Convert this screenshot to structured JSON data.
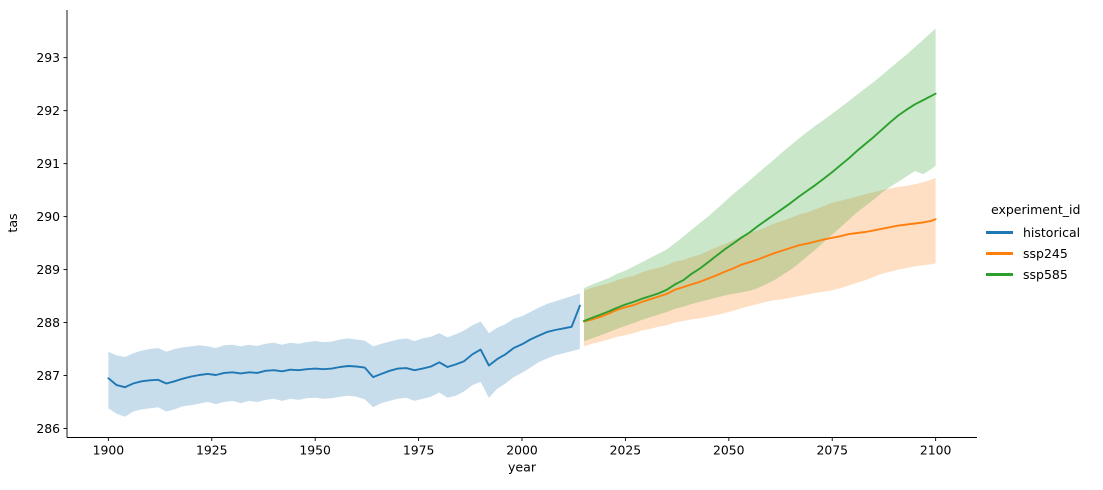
{
  "figure": {
    "background": "#ffffff"
  },
  "legend": {
    "title": "experiment_id",
    "items": [
      {
        "label": "historical",
        "color": "#1f77b4"
      },
      {
        "label": "ssp245",
        "color": "#ff7f0e"
      },
      {
        "label": "ssp585",
        "color": "#2ca02c"
      }
    ]
  },
  "chart_data": {
    "type": "line",
    "title": "",
    "xlabel": "year",
    "ylabel": "tas",
    "xlim": [
      1890,
      2110
    ],
    "ylim": [
      285.83,
      293.9
    ],
    "x_ticks": [
      1900,
      1925,
      1950,
      1975,
      2000,
      2025,
      2050,
      2075,
      2100
    ],
    "y_ticks": [
      286,
      287,
      288,
      289,
      290,
      291,
      292,
      293
    ],
    "grid": false,
    "legend_position": "right-outside",
    "band_alpha": 0.25,
    "series": [
      {
        "name": "historical",
        "color": "#1f77b4",
        "years": [
          1900,
          1902,
          1904,
          1906,
          1908,
          1910,
          1912,
          1914,
          1916,
          1918,
          1920,
          1922,
          1924,
          1926,
          1928,
          1930,
          1932,
          1934,
          1936,
          1938,
          1940,
          1942,
          1944,
          1946,
          1948,
          1950,
          1952,
          1954,
          1956,
          1958,
          1960,
          1962,
          1964,
          1966,
          1968,
          1970,
          1972,
          1974,
          1976,
          1978,
          1980,
          1982,
          1984,
          1986,
          1988,
          1990,
          1992,
          1994,
          1996,
          1998,
          2000,
          2002,
          2004,
          2006,
          2008,
          2010,
          2012,
          2014
        ],
        "mean": [
          286.95,
          286.82,
          286.78,
          286.85,
          286.89,
          286.91,
          286.92,
          286.85,
          286.89,
          286.94,
          286.98,
          287.01,
          287.03,
          287.01,
          287.05,
          287.06,
          287.04,
          287.06,
          287.05,
          287.09,
          287.1,
          287.08,
          287.11,
          287.1,
          287.12,
          287.13,
          287.12,
          287.13,
          287.16,
          287.18,
          287.17,
          287.15,
          286.97,
          287.03,
          287.09,
          287.13,
          287.14,
          287.1,
          287.13,
          287.17,
          287.25,
          287.16,
          287.21,
          287.27,
          287.4,
          287.49,
          287.19,
          287.31,
          287.4,
          287.52,
          287.59,
          287.68,
          287.75,
          287.82,
          287.86,
          287.89,
          287.92,
          288.32
        ],
        "hi": [
          287.45,
          287.38,
          287.35,
          287.42,
          287.47,
          287.5,
          287.52,
          287.45,
          287.5,
          287.53,
          287.55,
          287.57,
          287.55,
          287.52,
          287.57,
          287.58,
          287.55,
          287.58,
          287.56,
          287.6,
          287.62,
          287.58,
          287.62,
          287.6,
          287.63,
          287.65,
          287.63,
          287.64,
          287.68,
          287.7,
          287.68,
          287.66,
          287.55,
          287.6,
          287.64,
          287.68,
          287.7,
          287.65,
          287.7,
          287.73,
          287.8,
          287.72,
          287.78,
          287.85,
          287.95,
          288.02,
          287.8,
          287.9,
          287.97,
          288.07,
          288.12,
          288.2,
          288.28,
          288.35,
          288.4,
          288.45,
          288.5,
          288.55
        ],
        "lo": [
          286.38,
          286.28,
          286.22,
          286.32,
          286.36,
          286.38,
          286.4,
          286.32,
          286.36,
          286.42,
          286.44,
          286.47,
          286.5,
          286.46,
          286.5,
          286.52,
          286.48,
          286.52,
          286.5,
          286.54,
          286.56,
          286.52,
          286.56,
          286.54,
          286.57,
          286.58,
          286.56,
          286.57,
          286.6,
          286.62,
          286.6,
          286.55,
          286.4,
          286.48,
          286.52,
          286.56,
          286.58,
          286.52,
          286.56,
          286.6,
          286.68,
          286.58,
          286.62,
          286.7,
          286.82,
          286.88,
          286.58,
          286.75,
          286.85,
          286.97,
          287.05,
          287.15,
          287.25,
          287.32,
          287.38,
          287.42,
          287.46,
          287.5
        ]
      },
      {
        "name": "ssp245",
        "color": "#ff7f0e",
        "years": [
          2015,
          2017,
          2019,
          2021,
          2023,
          2025,
          2027,
          2029,
          2031,
          2033,
          2035,
          2037,
          2039,
          2041,
          2043,
          2045,
          2047,
          2049,
          2051,
          2053,
          2055,
          2057,
          2059,
          2061,
          2063,
          2065,
          2067,
          2069,
          2071,
          2073,
          2075,
          2077,
          2079,
          2081,
          2083,
          2085,
          2087,
          2089,
          2091,
          2093,
          2095,
          2097,
          2099,
          2100
        ],
        "mean": [
          288.02,
          288.06,
          288.11,
          288.17,
          288.24,
          288.29,
          288.33,
          288.39,
          288.44,
          288.49,
          288.54,
          288.62,
          288.67,
          288.72,
          288.77,
          288.83,
          288.89,
          288.96,
          289.02,
          289.09,
          289.14,
          289.19,
          289.25,
          289.31,
          289.36,
          289.41,
          289.46,
          289.49,
          289.53,
          289.57,
          289.6,
          289.63,
          289.67,
          289.69,
          289.71,
          289.74,
          289.77,
          289.8,
          289.83,
          289.85,
          289.87,
          289.89,
          289.92,
          289.95
        ],
        "hi": [
          288.6,
          288.66,
          288.7,
          288.74,
          288.8,
          288.85,
          288.88,
          288.95,
          289.0,
          289.03,
          289.08,
          289.15,
          289.18,
          289.24,
          289.28,
          289.35,
          289.42,
          289.48,
          289.55,
          289.63,
          289.7,
          289.74,
          289.8,
          289.87,
          289.92,
          289.98,
          290.04,
          290.08,
          290.14,
          290.2,
          290.26,
          290.3,
          290.34,
          290.38,
          290.42,
          290.46,
          290.5,
          290.53,
          290.56,
          290.58,
          290.61,
          290.65,
          290.7,
          290.73
        ],
        "lo": [
          287.55,
          287.6,
          287.64,
          287.68,
          287.73,
          287.76,
          287.8,
          287.85,
          287.88,
          287.92,
          287.95,
          288.0,
          288.03,
          288.06,
          288.08,
          288.11,
          288.14,
          288.18,
          288.22,
          288.27,
          288.31,
          288.35,
          288.39,
          288.42,
          288.44,
          288.47,
          288.5,
          288.53,
          288.56,
          288.58,
          288.61,
          288.65,
          288.7,
          288.75,
          288.8,
          288.86,
          288.92,
          288.96,
          289.0,
          289.03,
          289.06,
          289.08,
          289.1,
          289.12
        ]
      },
      {
        "name": "ssp585",
        "color": "#2ca02c",
        "years": [
          2015,
          2017,
          2019,
          2021,
          2023,
          2025,
          2027,
          2029,
          2031,
          2033,
          2035,
          2037,
          2039,
          2041,
          2043,
          2045,
          2047,
          2049,
          2051,
          2053,
          2055,
          2057,
          2059,
          2061,
          2063,
          2065,
          2067,
          2069,
          2071,
          2073,
          2075,
          2077,
          2079,
          2081,
          2083,
          2085,
          2087,
          2089,
          2091,
          2093,
          2095,
          2097,
          2099,
          2100
        ],
        "mean": [
          288.03,
          288.09,
          288.15,
          288.21,
          288.28,
          288.34,
          288.39,
          288.45,
          288.5,
          288.55,
          288.62,
          288.72,
          288.8,
          288.92,
          289.02,
          289.14,
          289.26,
          289.38,
          289.49,
          289.6,
          289.7,
          289.82,
          289.93,
          290.04,
          290.15,
          290.26,
          290.38,
          290.49,
          290.6,
          290.72,
          290.84,
          290.97,
          291.1,
          291.24,
          291.37,
          291.5,
          291.64,
          291.78,
          291.91,
          292.02,
          292.12,
          292.2,
          292.28,
          292.32
        ],
        "hi": [
          288.65,
          288.72,
          288.78,
          288.84,
          288.92,
          288.98,
          289.06,
          289.14,
          289.22,
          289.3,
          289.38,
          289.5,
          289.62,
          289.75,
          289.88,
          290.0,
          290.14,
          290.28,
          290.42,
          290.55,
          290.68,
          290.82,
          290.95,
          291.08,
          291.22,
          291.35,
          291.48,
          291.6,
          291.72,
          291.83,
          291.94,
          292.06,
          292.18,
          292.3,
          292.42,
          292.54,
          292.67,
          292.8,
          292.93,
          293.06,
          293.2,
          293.34,
          293.48,
          293.55
        ],
        "lo": [
          287.65,
          287.7,
          287.76,
          287.82,
          287.88,
          287.94,
          287.99,
          288.05,
          288.1,
          288.15,
          288.2,
          288.26,
          288.3,
          288.35,
          288.39,
          288.43,
          288.47,
          288.51,
          288.54,
          288.57,
          288.6,
          288.65,
          288.72,
          288.8,
          288.9,
          289.0,
          289.12,
          289.25,
          289.38,
          289.52,
          289.66,
          289.8,
          289.94,
          290.08,
          290.2,
          290.32,
          290.45,
          290.56,
          290.66,
          290.76,
          290.86,
          290.8,
          290.9,
          290.96
        ]
      }
    ]
  }
}
